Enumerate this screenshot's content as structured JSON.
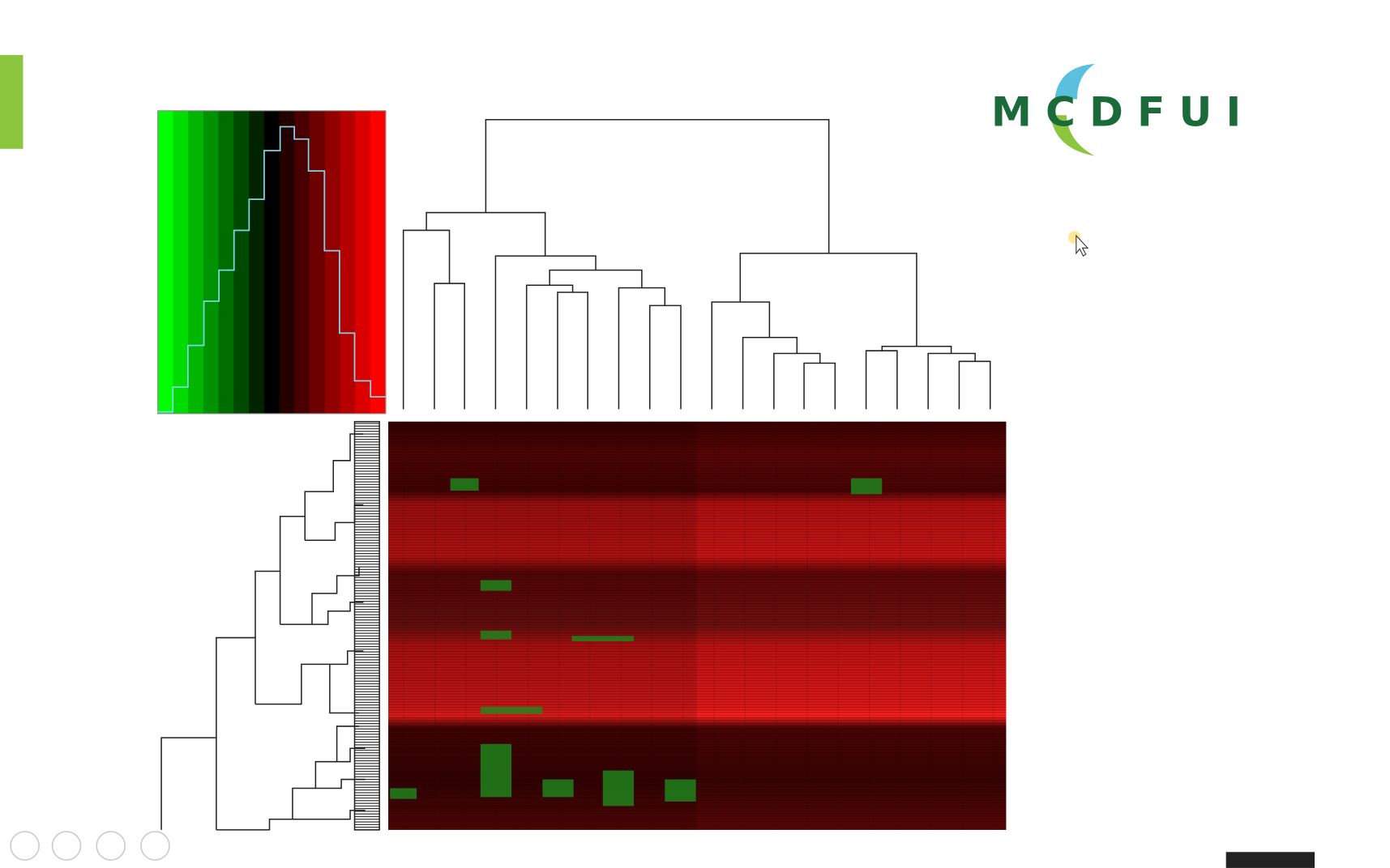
{
  "logo": {
    "text": "MCDFUI"
  }
}
